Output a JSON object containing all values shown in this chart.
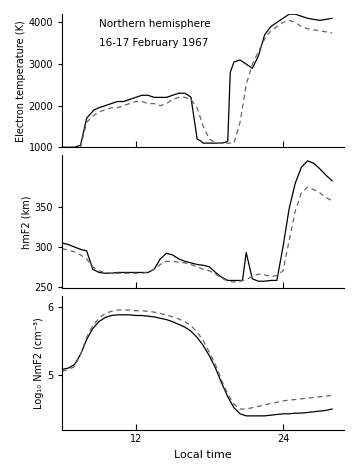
{
  "title_line1": "Northern hemisphere",
  "title_line2": "16-17 February 1967",
  "xlabel": "Local time",
  "ylabel1": "Electron temperature (K)",
  "ylabel2": "hmF2 (km)",
  "ylabel3": "Log₁₀ NmF2 (cm⁻³)",
  "xticks": [
    12,
    24
  ],
  "xmin": 6,
  "xmax": 29,
  "panel1_ylim": [
    1000,
    4200
  ],
  "panel1_yticks": [
    1000,
    2000,
    3000,
    4000
  ],
  "panel2_ylim": [
    248,
    415
  ],
  "panel2_yticks": [
    250,
    300,
    350
  ],
  "panel3_ylim": [
    4.2,
    6.15
  ],
  "panel3_yticks": [
    5,
    6
  ],
  "solid_color": "#000000",
  "dashed_color": "#666666",
  "Te_solid_x": [
    6.0,
    6.5,
    7.0,
    7.2,
    7.5,
    8.0,
    8.3,
    8.6,
    9.0,
    9.5,
    10.0,
    10.5,
    11.0,
    11.5,
    12.0,
    12.5,
    13.0,
    13.5,
    14.0,
    14.5,
    15.0,
    15.5,
    16.0,
    16.3,
    16.5,
    16.7,
    17.0,
    17.3,
    17.5,
    17.8,
    18.0,
    18.5,
    19.0,
    19.3,
    19.5,
    19.7,
    20.0,
    20.5,
    21.0,
    21.5,
    22.0,
    22.5,
    23.0,
    23.5,
    24.0,
    24.5,
    25.0,
    25.5,
    26.0,
    27.0,
    28.0
  ],
  "Te_solid_y": [
    1000,
    1000,
    1000,
    1020,
    1050,
    1700,
    1800,
    1900,
    1950,
    2000,
    2050,
    2100,
    2100,
    2150,
    2200,
    2250,
    2250,
    2200,
    2200,
    2200,
    2250,
    2300,
    2300,
    2250,
    2200,
    1800,
    1200,
    1150,
    1100,
    1100,
    1100,
    1100,
    1100,
    1120,
    1150,
    2800,
    3050,
    3100,
    3000,
    2900,
    3200,
    3700,
    3900,
    4000,
    4100,
    4200,
    4200,
    4150,
    4100,
    4050,
    4100
  ],
  "Te_dashed_x": [
    6.0,
    6.5,
    7.0,
    7.5,
    8.0,
    8.5,
    9.0,
    9.5,
    10.0,
    10.5,
    11.0,
    11.5,
    12.0,
    12.5,
    13.0,
    13.5,
    14.0,
    14.5,
    15.0,
    15.5,
    16.0,
    16.5,
    17.0,
    17.5,
    18.0,
    18.5,
    19.0,
    19.5,
    20.0,
    20.5,
    21.0,
    21.5,
    22.0,
    22.5,
    23.0,
    23.5,
    24.0,
    24.5,
    25.0,
    25.5,
    26.0,
    27.0,
    28.0
  ],
  "Te_dashed_y": [
    1000,
    1000,
    1000,
    1000,
    1600,
    1750,
    1850,
    1900,
    1950,
    1950,
    2000,
    2050,
    2100,
    2100,
    2050,
    2050,
    2000,
    2050,
    2150,
    2200,
    2200,
    2150,
    1950,
    1500,
    1200,
    1100,
    1100,
    1100,
    1100,
    1600,
    2500,
    3000,
    3300,
    3600,
    3800,
    3900,
    4000,
    4050,
    4000,
    3900,
    3850,
    3800,
    3750
  ],
  "hm_solid_x": [
    6.0,
    6.5,
    7.0,
    7.5,
    8.0,
    8.5,
    9.0,
    9.5,
    10.0,
    10.5,
    11.0,
    11.5,
    12.0,
    12.5,
    13.0,
    13.5,
    14.0,
    14.5,
    15.0,
    15.5,
    16.0,
    16.5,
    17.0,
    17.5,
    18.0,
    18.5,
    19.0,
    19.5,
    20.0,
    20.3,
    20.5,
    20.7,
    21.0,
    21.5,
    22.0,
    22.5,
    23.0,
    23.5,
    24.0,
    24.5,
    25.0,
    25.5,
    26.0,
    26.5,
    27.0,
    27.5,
    28.0
  ],
  "hm_solid_y": [
    305,
    303,
    300,
    297,
    295,
    272,
    268,
    267,
    267,
    268,
    268,
    268,
    268,
    268,
    268,
    272,
    285,
    292,
    290,
    285,
    282,
    280,
    278,
    277,
    275,
    268,
    262,
    258,
    258,
    258,
    258,
    258,
    293,
    260,
    257,
    257,
    258,
    258,
    300,
    348,
    380,
    400,
    408,
    405,
    398,
    390,
    383
  ],
  "hm_dashed_x": [
    6.0,
    6.5,
    7.0,
    7.5,
    8.0,
    8.5,
    9.0,
    9.5,
    10.0,
    10.5,
    11.0,
    11.5,
    12.0,
    12.5,
    13.0,
    13.5,
    14.0,
    14.5,
    15.0,
    15.5,
    16.0,
    16.5,
    17.0,
    17.5,
    18.0,
    18.5,
    19.0,
    19.5,
    20.0,
    20.5,
    21.0,
    21.5,
    22.0,
    22.5,
    23.0,
    23.5,
    24.0,
    24.5,
    25.0,
    25.5,
    26.0,
    26.5,
    27.0,
    27.5,
    28.0
  ],
  "hm_dashed_y": [
    298,
    296,
    294,
    290,
    285,
    275,
    270,
    268,
    267,
    267,
    267,
    267,
    267,
    267,
    268,
    272,
    278,
    282,
    282,
    281,
    280,
    278,
    275,
    272,
    270,
    266,
    261,
    257,
    256,
    257,
    259,
    263,
    266,
    265,
    263,
    264,
    270,
    308,
    345,
    368,
    375,
    372,
    368,
    362,
    358
  ],
  "Nm_solid_x": [
    6.0,
    6.5,
    7.0,
    7.5,
    8.0,
    8.5,
    9.0,
    9.5,
    10.0,
    10.5,
    11.0,
    11.5,
    12.0,
    12.5,
    13.0,
    13.5,
    14.0,
    14.5,
    15.0,
    15.5,
    16.0,
    16.5,
    17.0,
    17.5,
    18.0,
    18.5,
    19.0,
    19.5,
    20.0,
    20.5,
    21.0,
    21.5,
    22.0,
    22.5,
    23.0,
    23.5,
    24.0,
    24.5,
    25.0,
    25.5,
    26.0,
    26.5,
    27.0,
    27.5,
    28.0
  ],
  "Nm_solid_y": [
    5.08,
    5.1,
    5.15,
    5.3,
    5.52,
    5.68,
    5.78,
    5.84,
    5.87,
    5.88,
    5.88,
    5.88,
    5.87,
    5.87,
    5.86,
    5.85,
    5.83,
    5.81,
    5.78,
    5.74,
    5.7,
    5.64,
    5.55,
    5.43,
    5.28,
    5.1,
    4.88,
    4.68,
    4.52,
    4.43,
    4.4,
    4.4,
    4.4,
    4.4,
    4.41,
    4.42,
    4.43,
    4.43,
    4.44,
    4.44,
    4.45,
    4.46,
    4.47,
    4.48,
    4.5
  ],
  "Nm_dashed_x": [
    6.0,
    6.5,
    7.0,
    7.5,
    8.0,
    8.5,
    9.0,
    9.5,
    10.0,
    10.5,
    11.0,
    11.5,
    12.0,
    12.5,
    13.0,
    13.5,
    14.0,
    14.5,
    15.0,
    15.5,
    16.0,
    16.5,
    17.0,
    17.5,
    18.0,
    18.5,
    19.0,
    19.5,
    20.0,
    20.5,
    21.0,
    21.5,
    22.0,
    22.5,
    23.0,
    23.5,
    24.0,
    24.5,
    25.0,
    25.5,
    26.0,
    26.5,
    27.0,
    27.5,
    28.0
  ],
  "Nm_dashed_y": [
    5.05,
    5.08,
    5.12,
    5.3,
    5.55,
    5.72,
    5.83,
    5.9,
    5.93,
    5.95,
    5.95,
    5.95,
    5.94,
    5.94,
    5.93,
    5.92,
    5.9,
    5.88,
    5.85,
    5.82,
    5.78,
    5.72,
    5.63,
    5.5,
    5.33,
    5.15,
    4.92,
    4.72,
    4.57,
    4.5,
    4.5,
    4.52,
    4.54,
    4.56,
    4.58,
    4.6,
    4.62,
    4.63,
    4.64,
    4.65,
    4.66,
    4.67,
    4.68,
    4.69,
    4.7
  ]
}
